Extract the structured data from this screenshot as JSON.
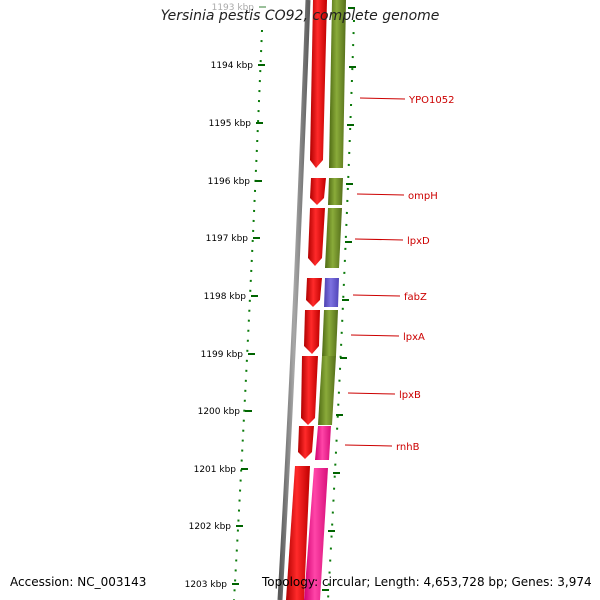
{
  "title": "Yersinia pestis CO92, complete genome",
  "footer": {
    "accession": "Accession: NC_003143",
    "summary": "Topology: circular; Length: 4,653,728 bp; Genes: 3,974"
  },
  "ticks": [
    {
      "label": "1193 kbp",
      "faded": true
    },
    {
      "label": "1194 kbp"
    },
    {
      "label": "1195 kbp"
    },
    {
      "label": "1196 kbp"
    },
    {
      "label": "1197 kbp"
    },
    {
      "label": "1198 kbp"
    },
    {
      "label": "1199 kbp"
    },
    {
      "label": "1200 kbp"
    },
    {
      "label": "1201 kbp"
    },
    {
      "label": "1202 kbp"
    },
    {
      "label": "1203 kbp"
    }
  ],
  "genes": [
    {
      "name": "YPO1052"
    },
    {
      "name": "ompH"
    },
    {
      "name": "lpxD"
    },
    {
      "name": "fabZ"
    },
    {
      "name": "lpxA"
    },
    {
      "name": "lpxB"
    },
    {
      "name": "rnhB"
    }
  ],
  "colors": {
    "cds": "#ff0000",
    "gene_green": "#6b8e23",
    "gene_purple": "#6a5acd",
    "gene_pink": "#ff1493",
    "backbone": "#808080",
    "tick": "#006400",
    "label": "#cc0000"
  }
}
